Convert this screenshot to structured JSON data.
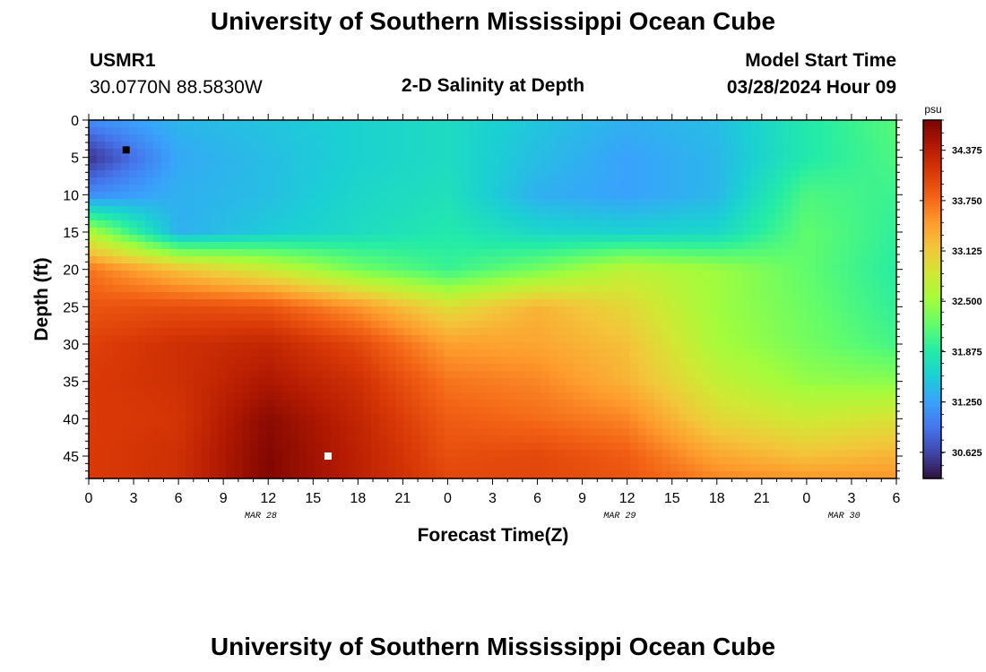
{
  "header": {
    "title": "University of Southern Mississippi Ocean Cube",
    "station_id": "USMR1",
    "station_location": "30.0770N  88.5830W",
    "plot_title": "2-D Salinity at Depth",
    "model_start_label": "Model Start Time",
    "model_start_value": "03/28/2024 Hour 09"
  },
  "footer": {
    "title": "University of Southern Mississippi Ocean Cube"
  },
  "chart_data": {
    "type": "heatmap",
    "title": "2-D Salinity at Depth",
    "xlabel": "Forecast Time(Z)",
    "ylabel": "Depth (ft)",
    "x_hours": [
      0,
      6,
      12,
      18,
      24,
      30,
      36,
      42,
      48,
      54
    ],
    "x_range_hours": [
      0,
      54
    ],
    "x_tick_labels": [
      "0",
      "3",
      "6",
      "9",
      "12",
      "15",
      "18",
      "21",
      "0",
      "3",
      "6",
      "9",
      "12",
      "15",
      "18",
      "21",
      "0",
      "3",
      "6"
    ],
    "date_labels": [
      {
        "label": "MAR 28",
        "hour": 11.5
      },
      {
        "label": "MAR 29",
        "hour": 35.5
      },
      {
        "label": "MAR 30",
        "hour": 50.5
      }
    ],
    "depths": [
      0,
      5,
      10,
      15,
      20,
      25,
      30,
      35,
      40,
      45,
      48
    ],
    "y_range": [
      0,
      48
    ],
    "y_ticks": [
      0,
      5,
      10,
      15,
      20,
      25,
      30,
      35,
      40,
      45
    ],
    "salinity": [
      [
        31.1,
        31.4,
        31.5,
        31.6,
        31.7,
        31.5,
        31.35,
        31.45,
        31.85,
        32.15
      ],
      [
        30.5,
        31.3,
        31.45,
        31.6,
        31.7,
        31.45,
        31.25,
        31.4,
        31.85,
        32.1
      ],
      [
        31.1,
        31.35,
        31.45,
        31.65,
        31.75,
        31.35,
        31.25,
        31.4,
        32.1,
        32.0
      ],
      [
        32.6,
        31.35,
        31.55,
        31.7,
        31.85,
        31.65,
        31.6,
        31.65,
        32.2,
        31.95
      ],
      [
        33.7,
        33.2,
        32.8,
        32.3,
        32.0,
        32.3,
        32.7,
        32.5,
        32.2,
        31.9
      ],
      [
        33.9,
        33.95,
        33.9,
        33.5,
        32.95,
        33.3,
        33.0,
        32.5,
        32.25,
        31.95
      ],
      [
        34.05,
        34.2,
        34.3,
        34.0,
        33.45,
        33.4,
        33.2,
        32.55,
        32.3,
        32.05
      ],
      [
        34.1,
        34.2,
        34.45,
        34.2,
        33.7,
        33.6,
        33.3,
        32.75,
        32.45,
        32.4
      ],
      [
        34.1,
        34.15,
        34.65,
        34.3,
        33.85,
        33.75,
        33.6,
        33.0,
        32.8,
        32.9
      ],
      [
        34.1,
        34.2,
        34.7,
        34.35,
        33.95,
        34.0,
        33.85,
        33.4,
        33.2,
        33.3
      ],
      [
        34.1,
        34.2,
        34.7,
        34.35,
        34.0,
        34.0,
        33.9,
        33.6,
        33.5,
        33.5
      ]
    ],
    "max_marker": {
      "hour": 16,
      "depth": 45,
      "color": "#ffffff"
    },
    "min_marker": {
      "hour": 2.5,
      "depth": 4,
      "color": "#000000"
    },
    "colorbar": {
      "unit": "psu",
      "range": [
        30.3,
        34.75
      ],
      "ticks": [
        "34.375",
        "33.750",
        "33.125",
        "32.500",
        "31.875",
        "31.250",
        "30.625"
      ],
      "colors": [
        "#30123b",
        "#4145ab",
        "#4675ed",
        "#39a2fc",
        "#1bcfd4",
        "#24eca6",
        "#61fc6c",
        "#a4fc3b",
        "#d1e834",
        "#f3c63a",
        "#fe9b2d",
        "#f36315",
        "#d93806",
        "#b11901",
        "#7a0402"
      ]
    }
  }
}
